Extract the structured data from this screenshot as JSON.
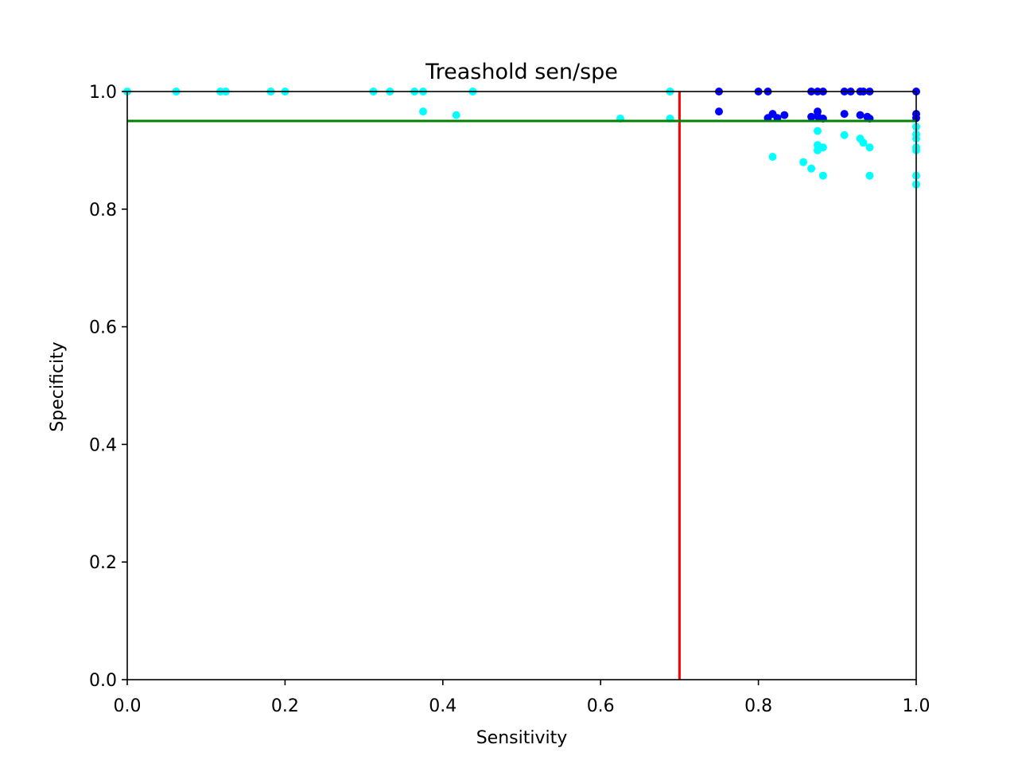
{
  "chart_data": {
    "type": "scatter",
    "title": "Treashold sen/spe",
    "xlabel": "Sensitivity",
    "ylabel": "Specificity",
    "xlim": [
      0.0,
      1.0
    ],
    "ylim": [
      0.0,
      1.0
    ],
    "xticks": [
      "0.0",
      "0.2",
      "0.4",
      "0.6",
      "0.8",
      "1.0"
    ],
    "yticks": [
      "0.0",
      "0.2",
      "0.4",
      "0.6",
      "0.8",
      "1.0"
    ],
    "grid": false,
    "reference_lines": [
      {
        "orientation": "vertical",
        "x": 0.7,
        "color": "#ff0000"
      },
      {
        "orientation": "horizontal",
        "y": 0.95,
        "color": "#008000"
      }
    ],
    "series": [
      {
        "color": "#00ffff",
        "points": [
          [
            0.0,
            1.0
          ],
          [
            0.062,
            1.0
          ],
          [
            0.118,
            1.0
          ],
          [
            0.125,
            1.0
          ],
          [
            0.182,
            1.0
          ],
          [
            0.2,
            1.0
          ],
          [
            0.312,
            1.0
          ],
          [
            0.333,
            1.0
          ],
          [
            0.364,
            1.0
          ],
          [
            0.375,
            1.0
          ],
          [
            0.375,
            0.966
          ],
          [
            0.417,
            0.96
          ],
          [
            0.438,
            1.0
          ],
          [
            0.625,
            0.954
          ],
          [
            0.688,
            1.0
          ],
          [
            0.688,
            0.954
          ],
          [
            0.818,
            0.889
          ],
          [
            0.857,
            0.88
          ],
          [
            0.867,
            0.869
          ],
          [
            0.875,
            0.933
          ],
          [
            0.875,
            0.909
          ],
          [
            0.875,
            0.9
          ],
          [
            0.882,
            0.905
          ],
          [
            0.882,
            0.857
          ],
          [
            0.909,
            0.926
          ],
          [
            0.929,
            0.92
          ],
          [
            0.933,
            0.913
          ],
          [
            0.941,
            0.905
          ],
          [
            0.941,
            0.857
          ],
          [
            1.0,
            0.94
          ],
          [
            1.0,
            0.927
          ],
          [
            1.0,
            0.92
          ],
          [
            1.0,
            0.905
          ],
          [
            1.0,
            0.9
          ],
          [
            1.0,
            0.857
          ],
          [
            1.0,
            0.842
          ]
        ]
      },
      {
        "color": "#0000ff",
        "points": [
          [
            0.75,
            1.0
          ],
          [
            0.75,
            0.966
          ],
          [
            0.8,
            1.0
          ],
          [
            0.812,
            1.0
          ],
          [
            0.812,
            0.955
          ],
          [
            0.818,
            0.962
          ],
          [
            0.824,
            0.955
          ],
          [
            0.833,
            0.96
          ],
          [
            0.867,
            1.0
          ],
          [
            0.867,
            0.957
          ],
          [
            0.875,
            1.0
          ],
          [
            0.875,
            0.966
          ],
          [
            0.875,
            0.958
          ],
          [
            0.882,
            1.0
          ],
          [
            0.882,
            0.954
          ],
          [
            0.909,
            1.0
          ],
          [
            0.909,
            0.962
          ],
          [
            0.917,
            1.0
          ],
          [
            0.929,
            1.0
          ],
          [
            0.929,
            0.96
          ],
          [
            0.933,
            1.0
          ],
          [
            0.938,
            0.957
          ],
          [
            0.941,
            1.0
          ],
          [
            0.941,
            0.954
          ],
          [
            1.0,
            1.0
          ],
          [
            1.0,
            0.962
          ],
          [
            1.0,
            0.955
          ]
        ]
      }
    ]
  }
}
